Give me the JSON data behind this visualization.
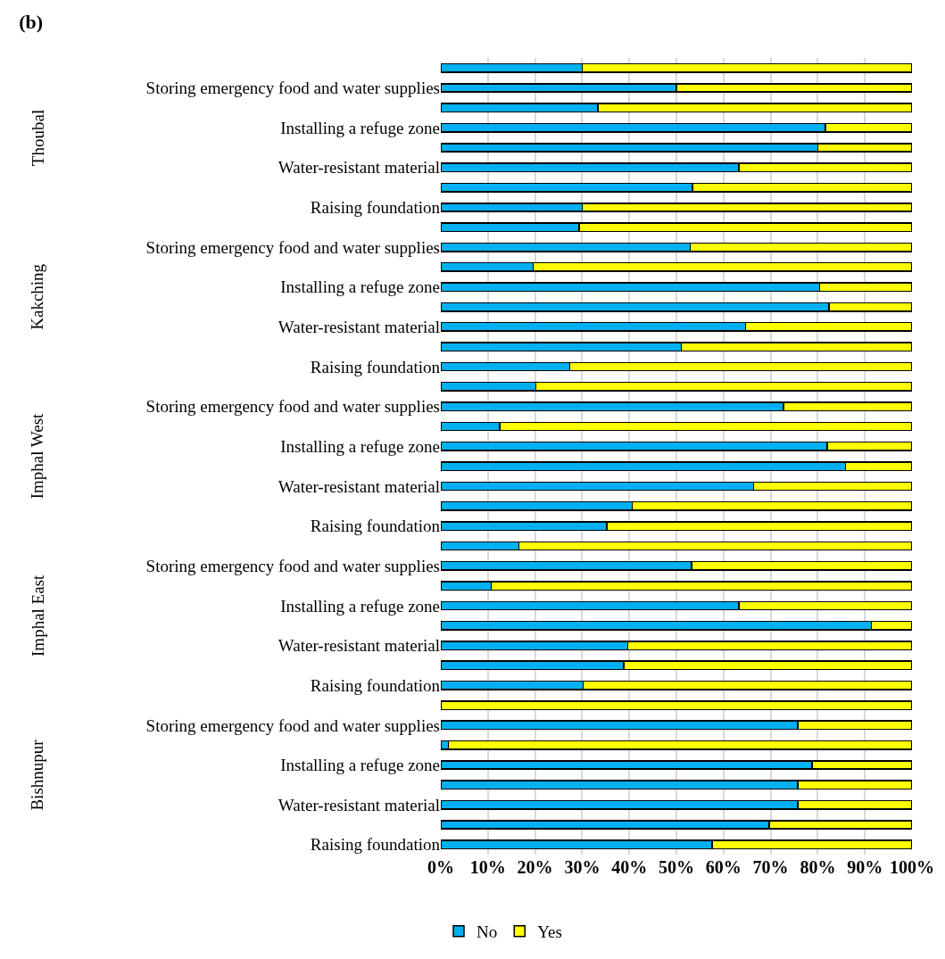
{
  "chart_data": {
    "type": "bar",
    "orientation": "horizontal",
    "stacked": true,
    "title": "(b)",
    "categories": [
      null,
      "Storing emergency food and water supplies",
      null,
      "Installing a refuge zone",
      null,
      "Water-resistant material",
      null,
      "Raising foundation",
      null,
      "Storing emergency food and water supplies",
      null,
      "Installing a refuge zone",
      null,
      "Water-resistant material",
      null,
      "Raising foundation",
      null,
      "Storing emergency food and water supplies",
      null,
      "Installing a refuge zone",
      null,
      "Water-resistant material",
      null,
      "Raising foundation",
      null,
      "Storing emergency food and water supplies",
      null,
      "Installing a refuge zone",
      null,
      "Water-resistant material",
      null,
      "Raising foundation",
      null,
      "Storing emergency food and water supplies",
      null,
      "Installing a refuge zone",
      null,
      "Water-resistant material",
      null,
      "Raising foundation"
    ],
    "series": [
      {
        "name": "No",
        "color": "#00b0f0",
        "values": [
          30,
          50,
          33.3,
          81.6,
          80,
          63.3,
          53.4,
          30,
          29.4,
          52.9,
          19.6,
          80.4,
          82.4,
          64.7,
          51,
          27.4,
          20.2,
          72.7,
          12.5,
          82,
          85.9,
          66.4,
          40.6,
          35.2,
          16.6,
          53.2,
          10.7,
          63.3,
          91.4,
          39.7,
          38.8,
          30.2,
          0,
          75.8,
          1.6,
          78.8,
          75.8,
          75.8,
          69.7,
          57.6
        ]
      },
      {
        "name": "Yes",
        "color": "#ffff00",
        "values": [
          70,
          50,
          66.7,
          18.4,
          20,
          36.7,
          46.6,
          70,
          70.6,
          47.1,
          80.4,
          19.6,
          17.6,
          35.3,
          49,
          72.6,
          79.8,
          27.3,
          87.5,
          18,
          14.1,
          33.6,
          59.4,
          64.8,
          83.4,
          46.8,
          89.3,
          36.7,
          8.6,
          60.3,
          61.2,
          69.8,
          100,
          24.2,
          98.4,
          21.2,
          24.2,
          24.2,
          30.3,
          42.4
        ]
      }
    ],
    "annotations": [
      "Thoubal",
      "Kakching",
      "Imphal West",
      "Imphal East",
      "Bishnupur"
    ],
    "xlim": [
      0,
      100
    ],
    "xticks": [
      {
        "value": 0,
        "label": "0%"
      },
      {
        "value": 10,
        "label": "10%"
      },
      {
        "value": 20,
        "label": "20%"
      },
      {
        "value": 30,
        "label": "30%"
      },
      {
        "value": 40,
        "label": "40%"
      },
      {
        "value": 50,
        "label": "50%"
      },
      {
        "value": 60,
        "label": "60%"
      },
      {
        "value": 70,
        "label": "70%"
      },
      {
        "value": 80,
        "label": "80%"
      },
      {
        "value": 90,
        "label": "90%"
      },
      {
        "value": 100,
        "label": "100%"
      }
    ],
    "grid": "x",
    "legend": "bottom"
  }
}
